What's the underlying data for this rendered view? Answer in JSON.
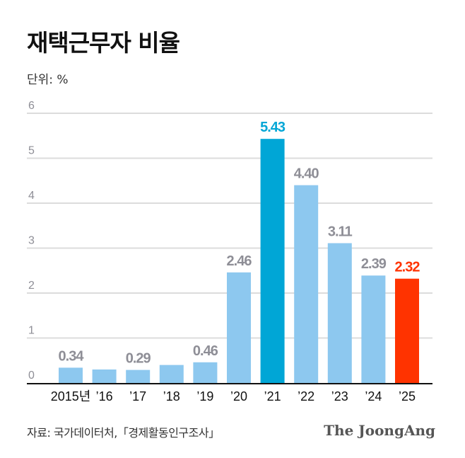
{
  "chart_data": {
    "type": "bar",
    "title": "재택근무자 비율",
    "unit_label": "단위: %",
    "categories": [
      "2015년",
      "’16",
      "’17",
      "’18",
      "’19",
      "’20",
      "’21",
      "’22",
      "’23",
      "’24",
      "’25"
    ],
    "values": [
      0.34,
      0.3,
      0.29,
      0.4,
      0.46,
      2.46,
      5.43,
      4.4,
      3.11,
      2.39,
      2.32
    ],
    "data_labels": [
      "0.34",
      "",
      "0.29",
      "",
      "0.46",
      "2.46",
      "5.43",
      "4.40",
      "3.11",
      "2.39",
      "2.32"
    ],
    "ylim": [
      0,
      6
    ],
    "yticks": [
      "0",
      "1",
      "2",
      "3",
      "4",
      "5",
      "6"
    ],
    "grid": true,
    "colors": {
      "default": "#8dc8ef",
      "highlight_2021": "#00a6d6",
      "highlight_2025": "#ff3300",
      "label": "#8e8e96"
    },
    "highlight": {
      "’21": "#00a6d6",
      "’25": "#ff3300"
    },
    "source": "자료: 국가데이터처,「경제활동인구조사」",
    "logo": "The JoongAng"
  }
}
